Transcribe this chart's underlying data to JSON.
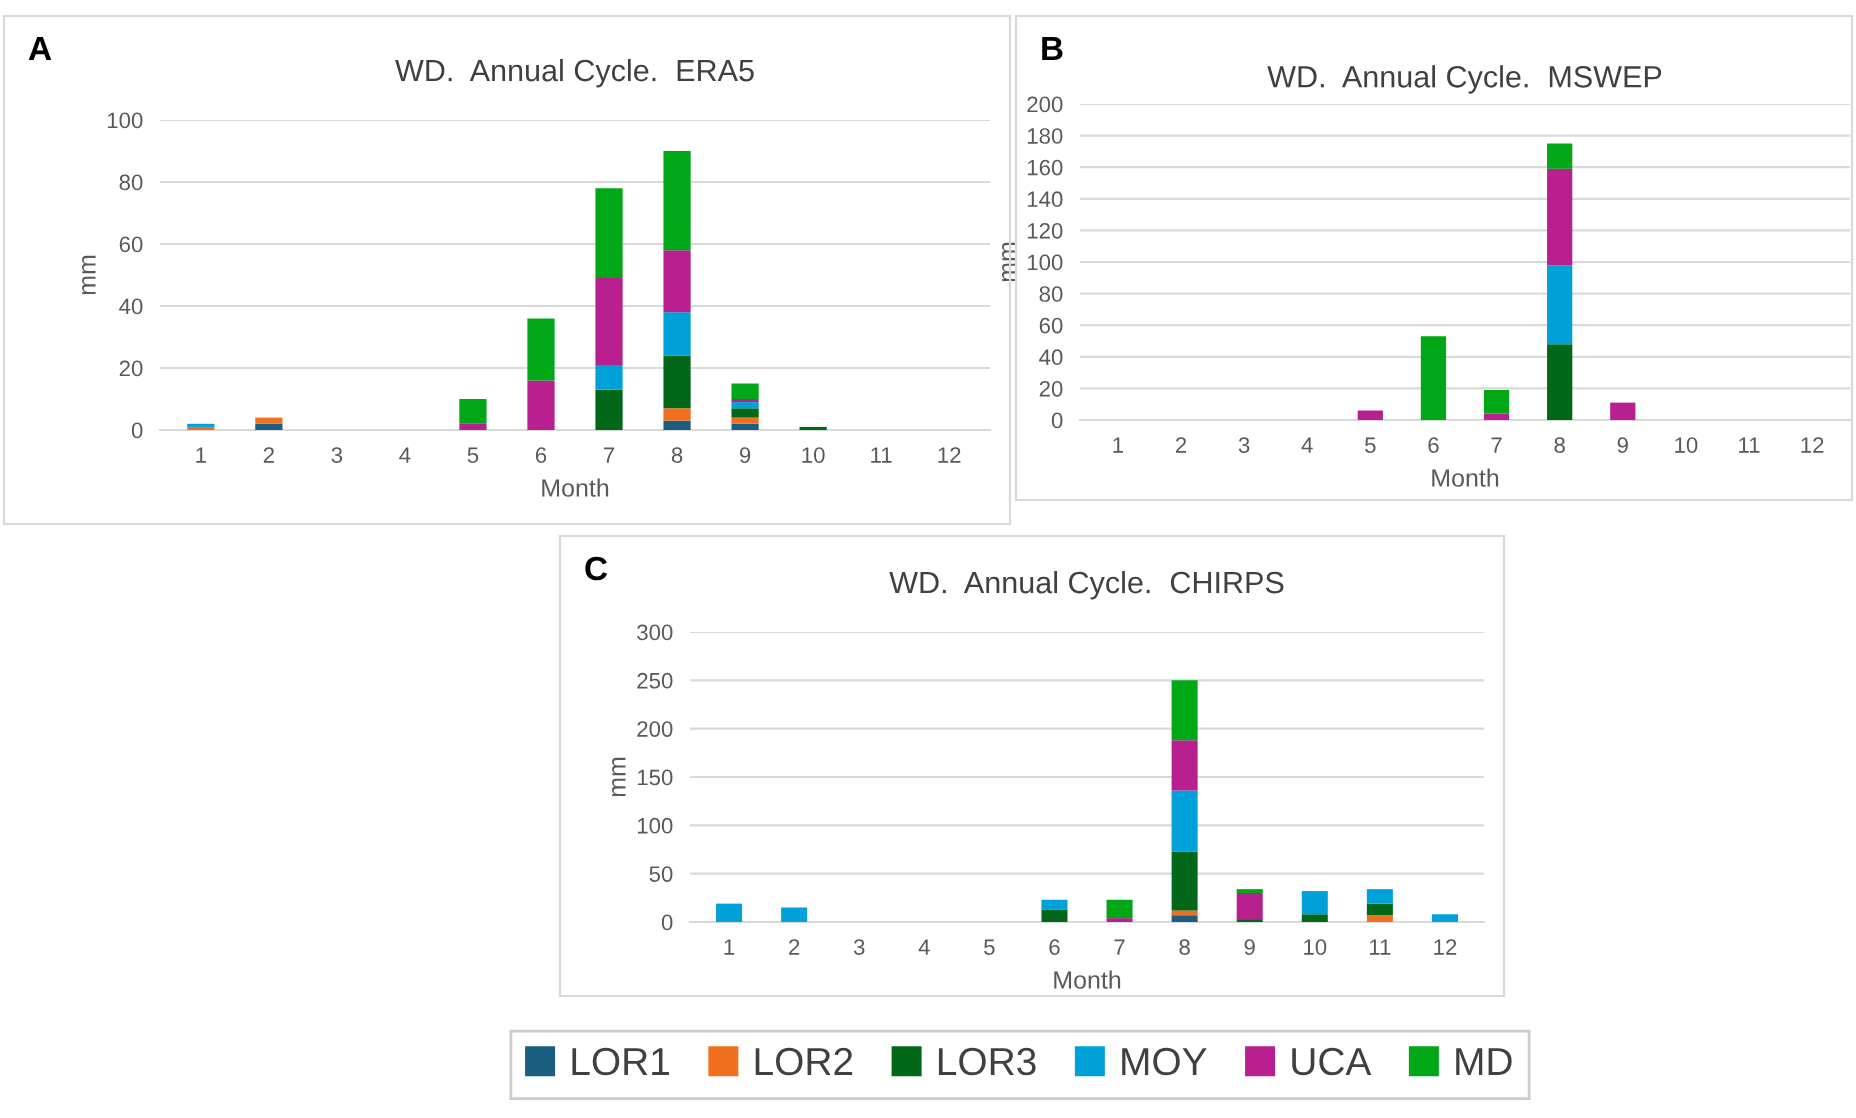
{
  "chart_data": [
    {
      "type": "bar",
      "stacked": true,
      "title": "WD.  Annual Cycle.  ERA5",
      "annotations": [
        "A"
      ],
      "xlabel": "Month",
      "ylabel": "mm",
      "categories": [
        "1",
        "2",
        "3",
        "4",
        "5",
        "6",
        "7",
        "8",
        "9",
        "10",
        "11",
        "12"
      ],
      "ylim": [
        0,
        100
      ],
      "yticks": [
        0,
        20,
        40,
        60,
        80,
        100
      ],
      "grid": "y",
      "legend": "bottom",
      "series": [
        {
          "name": "LOR1",
          "color": "#1a5f80",
          "values": [
            0,
            2,
            0,
            0,
            0,
            0,
            0,
            3,
            2,
            0,
            0,
            0
          ]
        },
        {
          "name": "LOR2",
          "color": "#f07020",
          "values": [
            1,
            2,
            0,
            0,
            0,
            0,
            0,
            4,
            2,
            0,
            0,
            0
          ]
        },
        {
          "name": "LOR3",
          "color": "#006818",
          "values": [
            0,
            0,
            0,
            0,
            0,
            0,
            13,
            17,
            3,
            1,
            0,
            0
          ]
        },
        {
          "name": "MOY",
          "color": "#00a0d8",
          "values": [
            1,
            0,
            0,
            0,
            0,
            0,
            8,
            14,
            2,
            0,
            0,
            0
          ]
        },
        {
          "name": "UCA",
          "color": "#b82090",
          "values": [
            0,
            0,
            0,
            0,
            2,
            16,
            28,
            20,
            1,
            0,
            0,
            0
          ]
        },
        {
          "name": "MD",
          "color": "#00a818",
          "values": [
            0,
            0,
            0,
            0,
            8,
            20,
            29,
            32,
            5,
            0,
            0,
            0
          ]
        }
      ]
    },
    {
      "type": "bar",
      "stacked": true,
      "title": "WD.  Annual Cycle.  MSWEP",
      "annotations": [
        "B"
      ],
      "xlabel": "Month",
      "ylabel": "mm",
      "categories": [
        "1",
        "2",
        "3",
        "4",
        "5",
        "6",
        "7",
        "8",
        "9",
        "10",
        "11",
        "12"
      ],
      "ylim": [
        0,
        200
      ],
      "yticks": [
        0,
        20,
        40,
        60,
        80,
        100,
        120,
        140,
        160,
        180,
        200
      ],
      "grid": "y",
      "series": [
        {
          "color": "#1a5f80",
          "values": [
            0,
            0,
            0,
            0,
            0,
            0,
            0,
            0,
            0,
            0,
            0,
            0
          ]
        },
        {
          "color": "#f07020",
          "values": [
            0,
            0,
            0,
            0,
            0,
            0,
            0,
            0,
            0,
            0,
            0,
            0
          ]
        },
        {
          "color": "#006818",
          "values": [
            0,
            0,
            0,
            0,
            0,
            0,
            0,
            48,
            0,
            0,
            0,
            0
          ]
        },
        {
          "color": "#00a0d8",
          "values": [
            0,
            0,
            0,
            0,
            0,
            0,
            0,
            50,
            0,
            0,
            0,
            0
          ]
        },
        {
          "color": "#b82090",
          "values": [
            0,
            0,
            0,
            0,
            6,
            0,
            4,
            61,
            11,
            0,
            0,
            0
          ]
        },
        {
          "color": "#00a818",
          "values": [
            0,
            0,
            0,
            0,
            0,
            53,
            15,
            16,
            0,
            0,
            0,
            0
          ]
        }
      ]
    },
    {
      "type": "bar",
      "stacked": true,
      "title": "WD.  Annual Cycle.  CHIRPS",
      "annotations": [
        "C"
      ],
      "xlabel": "Month",
      "ylabel": "mm",
      "categories": [
        "1",
        "2",
        "3",
        "4",
        "5",
        "6",
        "7",
        "8",
        "9",
        "10",
        "11",
        "12"
      ],
      "ylim": [
        0,
        300
      ],
      "yticks": [
        0,
        50,
        100,
        150,
        200,
        250,
        300
      ],
      "grid": "y",
      "series": [
        {
          "color": "#1a5f80",
          "values": [
            0,
            0,
            0,
            0,
            0,
            0,
            0,
            7,
            0,
            0,
            0,
            0
          ]
        },
        {
          "color": "#f07020",
          "values": [
            0,
            0,
            0,
            0,
            0,
            0,
            0,
            5,
            0,
            0,
            7,
            0
          ]
        },
        {
          "color": "#006818",
          "values": [
            0,
            0,
            0,
            0,
            0,
            13,
            0,
            61,
            3,
            8,
            12,
            0
          ]
        },
        {
          "color": "#00a0d8",
          "values": [
            19,
            15,
            0,
            0,
            0,
            10,
            0,
            63,
            0,
            24,
            15,
            8
          ]
        },
        {
          "color": "#b82090",
          "values": [
            0,
            0,
            0,
            0,
            0,
            0,
            4,
            52,
            27,
            0,
            0,
            0
          ]
        },
        {
          "color": "#00a818",
          "values": [
            0,
            0,
            0,
            0,
            0,
            0,
            19,
            62,
            4,
            0,
            0,
            0
          ]
        }
      ]
    }
  ]
}
